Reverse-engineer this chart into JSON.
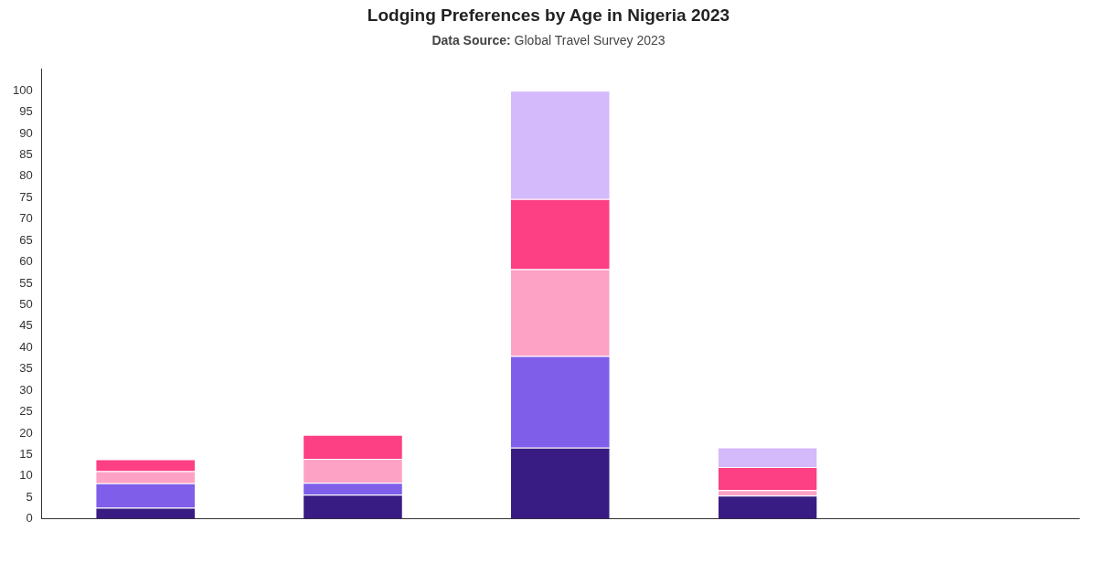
{
  "chart_data": {
    "type": "bar",
    "title": "Lodging Preferences by Age in Nigeria 2023",
    "subtitle": "Data Source: Global Travel Survey 2023",
    "categories": [
      null,
      null,
      null,
      null,
      null
    ],
    "stacked": true,
    "legend": false,
    "grid": false,
    "ylim": [
      0,
      105
    ],
    "yticks": [
      0,
      5,
      10,
      15,
      20,
      25,
      30,
      35,
      40,
      45,
      50,
      55,
      60,
      65,
      70,
      75,
      80,
      85,
      90,
      95,
      100
    ],
    "series": [
      {
        "color": "#381c83",
        "values": [
          2.6,
          5.6,
          16.6,
          5.4,
          null
        ]
      },
      {
        "color": "#7f5eea",
        "values": [
          5.7,
          2.8,
          21.4,
          null,
          null
        ]
      },
      {
        "color": "#fda2c5",
        "values": [
          2.8,
          5.6,
          20.3,
          1.3,
          null
        ]
      },
      {
        "color": "#fd3f84",
        "values": [
          2.8,
          5.6,
          16.4,
          5.4,
          null
        ]
      },
      {
        "color": "#d4b9fb",
        "values": [
          null,
          null,
          25.3,
          4.6,
          null
        ]
      }
    ]
  }
}
